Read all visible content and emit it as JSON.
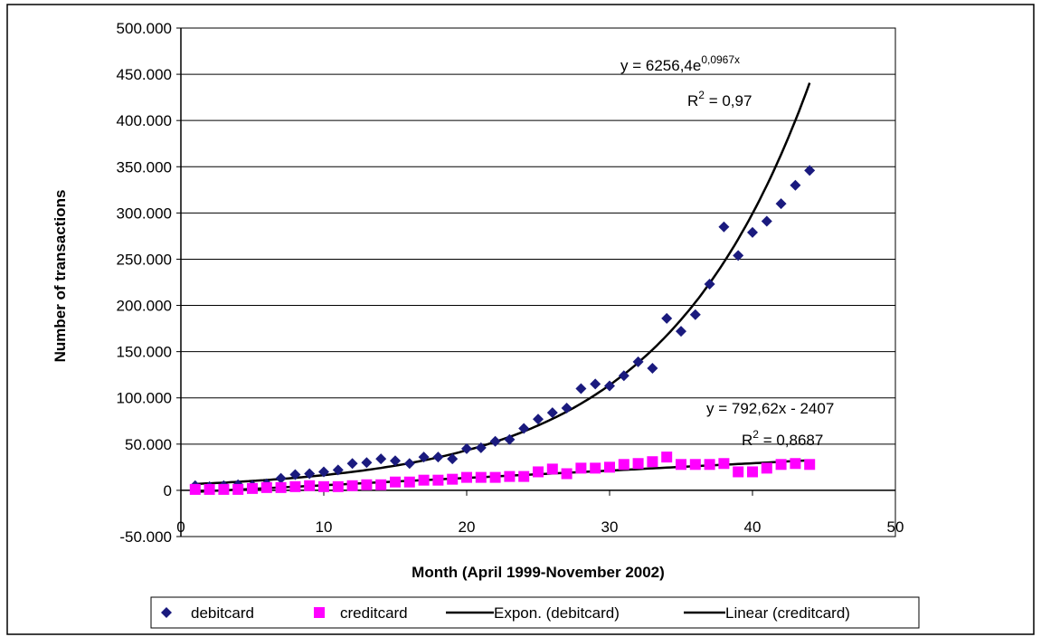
{
  "chart_data": {
    "type": "scatter",
    "xlabel": "Month (April 1999-November 2002)",
    "ylabel": "Number of transactions",
    "xlim": [
      0,
      50
    ],
    "ylim": [
      -50000,
      500000
    ],
    "x_ticks": [
      0,
      10,
      20,
      30,
      40,
      50
    ],
    "x_tick_labels": [
      "0",
      "10",
      "20",
      "30",
      "40",
      "50"
    ],
    "y_ticks": [
      -50000,
      0,
      50000,
      100000,
      150000,
      200000,
      250000,
      300000,
      350000,
      400000,
      450000,
      500000
    ],
    "y_tick_labels": [
      "-50.000",
      "0",
      "50.000",
      "100.000",
      "150.000",
      "200.000",
      "250.000",
      "300.000",
      "350.000",
      "400.000",
      "450.000",
      "500.000"
    ],
    "grid": "horizontal",
    "legend_position": "bottom",
    "series": [
      {
        "name": "debitcard",
        "marker": "diamond",
        "color": "#1a1a7e",
        "x": [
          1,
          2,
          3,
          4,
          5,
          6,
          7,
          8,
          9,
          10,
          11,
          12,
          13,
          14,
          15,
          16,
          17,
          18,
          19,
          20,
          21,
          22,
          23,
          24,
          25,
          26,
          27,
          28,
          29,
          30,
          31,
          32,
          33,
          34,
          35,
          36,
          37,
          38,
          39,
          40,
          41,
          42,
          43,
          44
        ],
        "y": [
          5000,
          4000,
          5000,
          6000,
          5000,
          7000,
          13000,
          17000,
          18000,
          20000,
          22000,
          29000,
          30000,
          34000,
          32000,
          29000,
          36000,
          36000,
          34000,
          45000,
          46000,
          53000,
          55000,
          67000,
          77000,
          84000,
          89000,
          110000,
          115000,
          113000,
          124000,
          139000,
          132000,
          186000,
          172000,
          190000,
          223000,
          285000,
          254000,
          279000,
          291000,
          310000,
          330000,
          346000
        ]
      },
      {
        "name": "creditcard",
        "marker": "square",
        "color": "#ff00ff",
        "x": [
          1,
          2,
          3,
          4,
          5,
          6,
          7,
          8,
          9,
          10,
          11,
          12,
          13,
          14,
          15,
          16,
          17,
          18,
          19,
          20,
          21,
          22,
          23,
          24,
          25,
          26,
          27,
          28,
          29,
          30,
          31,
          32,
          33,
          34,
          35,
          36,
          37,
          38,
          39,
          40,
          41,
          42,
          43,
          44
        ],
        "y": [
          1000,
          1000,
          1000,
          1000,
          2000,
          3000,
          3000,
          4000,
          5000,
          4000,
          4000,
          5000,
          6000,
          6000,
          9000,
          9000,
          11000,
          11000,
          12000,
          14000,
          14000,
          14000,
          15000,
          15000,
          20000,
          23000,
          18000,
          24000,
          24000,
          25000,
          28000,
          29000,
          31000,
          36000,
          28000,
          28000,
          28000,
          29000,
          20000,
          20000,
          24000,
          28000,
          29000,
          28000
        ]
      }
    ],
    "trendlines": [
      {
        "name": "Expon. (debitcard)",
        "type": "exponential",
        "a": 6256.4,
        "b": 0.0967,
        "x_range": [
          1,
          44
        ],
        "color": "#000000",
        "equation_prefix": "y = 6256,4e",
        "equation_exponent": "0,0967x",
        "r2_label": "R",
        "r2_value": " = 0,97"
      },
      {
        "name": "Linear (creditcard)",
        "type": "linear",
        "slope": 792.62,
        "intercept": -2407,
        "x_range": [
          1,
          44
        ],
        "color": "#000000",
        "equation": "y = 792,62x - 2407",
        "r2_label": "R",
        "r2_value": " = 0,8687"
      }
    ],
    "legend": [
      "debitcard",
      "creditcard",
      "Expon. (debitcard)",
      "Linear (creditcard)"
    ]
  }
}
